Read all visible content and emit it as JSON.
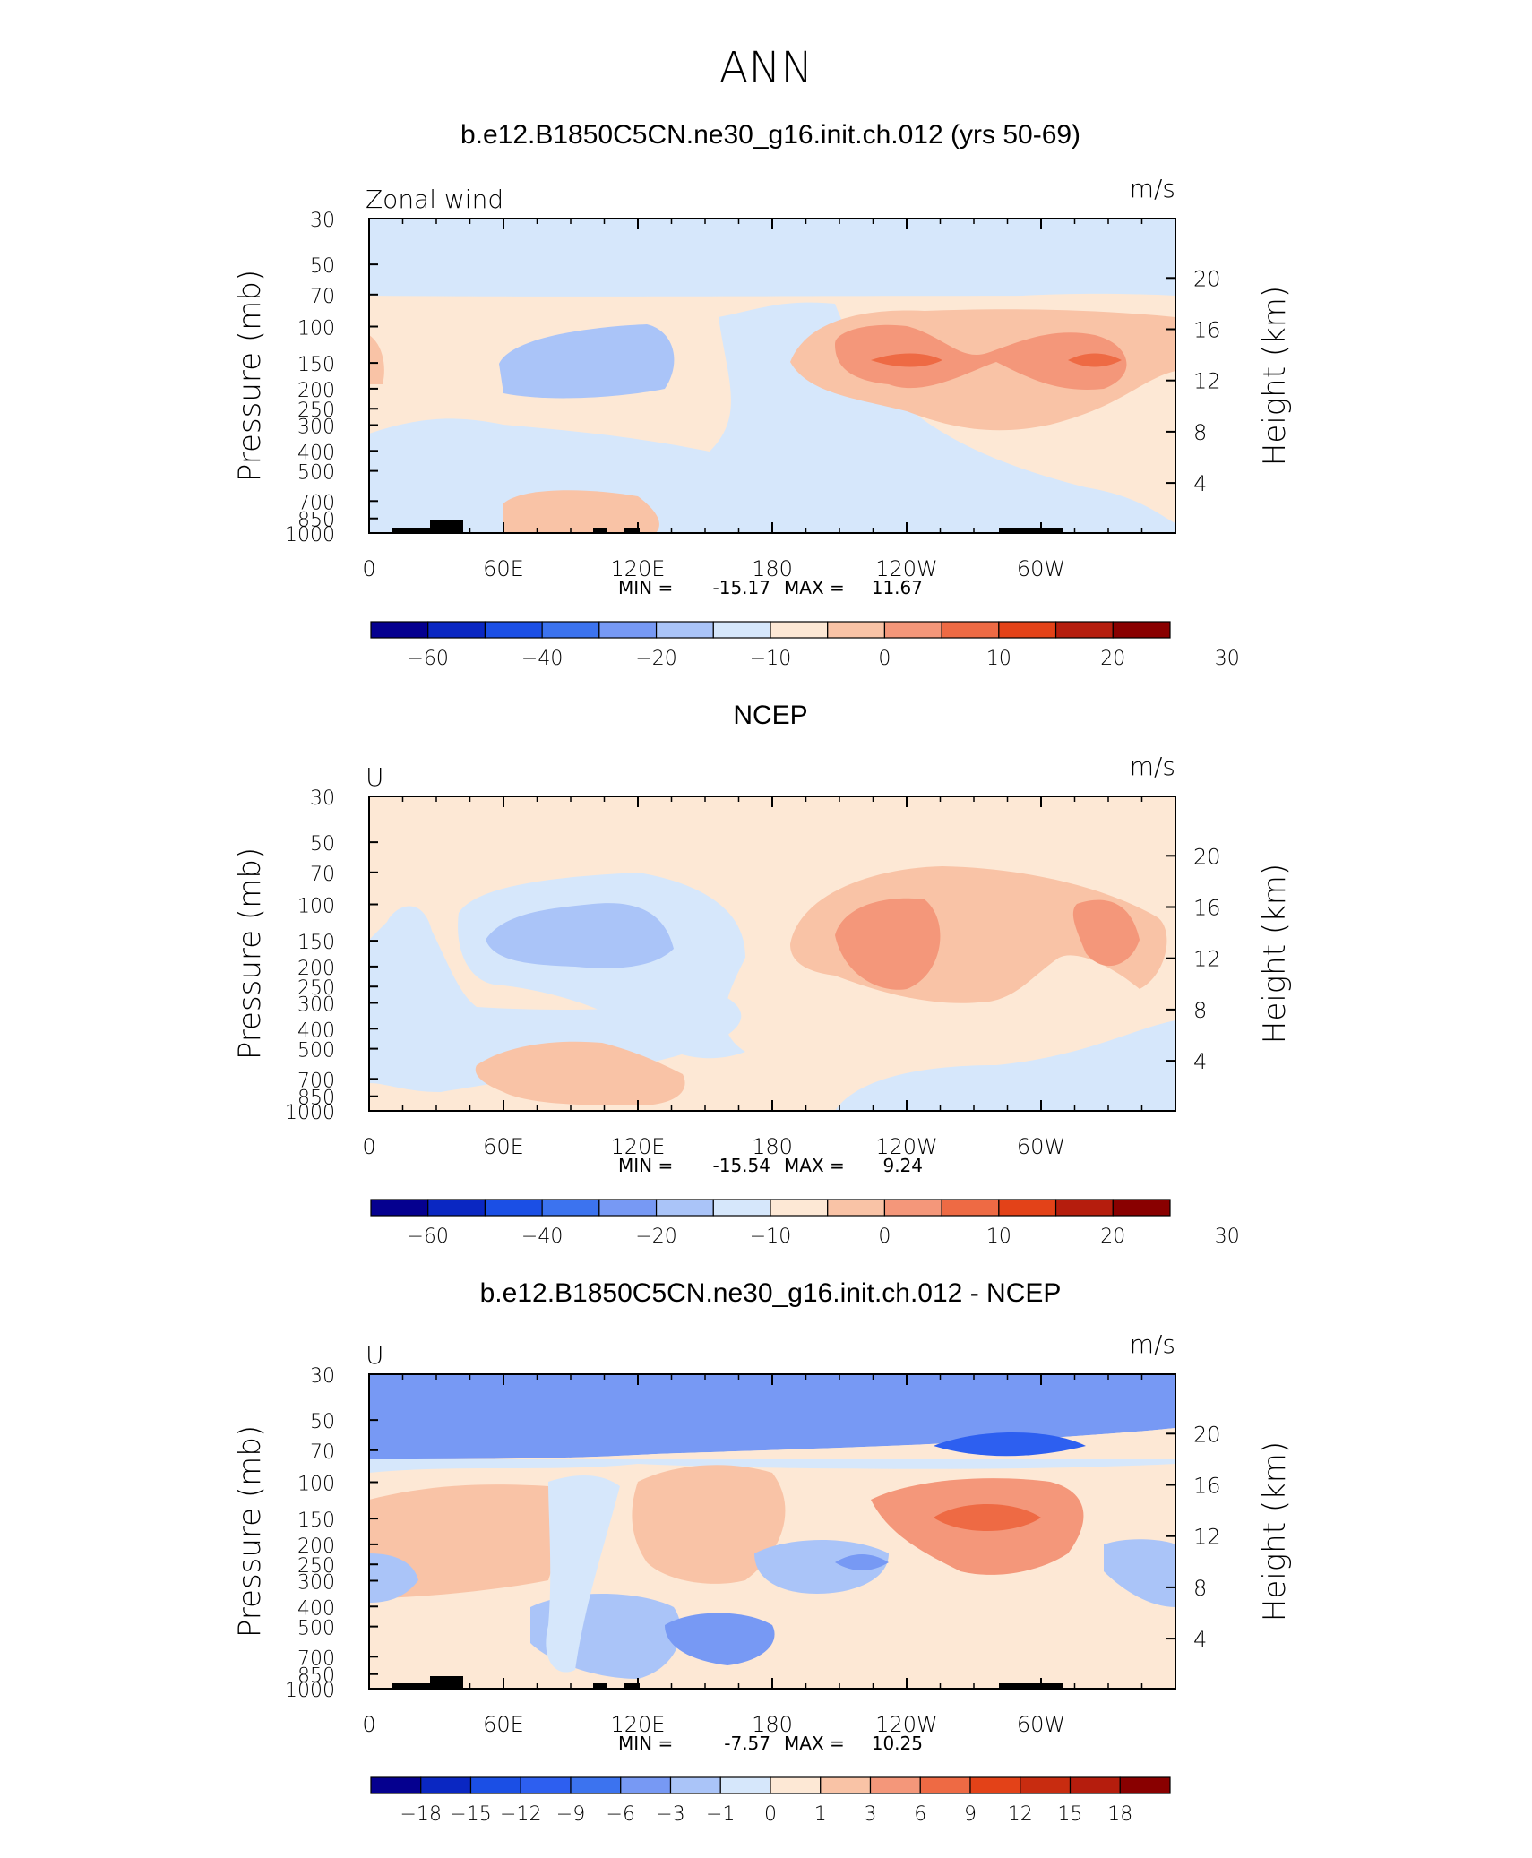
{
  "figure": {
    "title": "ANN"
  },
  "chart_data": [
    {
      "type": "contour",
      "panel_title": "b.e12.B1850C5CN.ne30_g16.init.ch.012 (yrs 50-69)",
      "left_label": "Zonal wind",
      "units": "m/s",
      "ylabel": "Pressure (mb)",
      "ylabel_right": "Height (km)",
      "x_ticks": [
        "0",
        "60E",
        "120E",
        "180",
        "120W",
        "60W"
      ],
      "y_ticks": [
        "30",
        "50",
        "70",
        "100",
        "150",
        "200",
        "250",
        "300",
        "400",
        "500",
        "700",
        "850",
        "1000"
      ],
      "y_ticks_right": [
        "20",
        "16",
        "12",
        "8",
        "4"
      ],
      "stats": {
        "min_label": "MIN =",
        "min": "-15.17",
        "max_label": "MAX =",
        "max": "11.67"
      },
      "colorbar": {
        "levels": [
          "-60",
          "-40",
          "-20",
          "-10",
          "0",
          "10",
          "20",
          "30"
        ],
        "colors": [
          "#05008f",
          "#0a27c2",
          "#1b4fe5",
          "#3c73ef",
          "#7799f4",
          "#aac4f8",
          "#d6e7fb",
          "#fde8d5",
          "#f9c3a6",
          "#f4977a",
          "#ee6a44",
          "#e34218",
          "#b51d0d",
          "#890000"
        ]
      },
      "regions": [
        {
          "label": "easterly 0 to -10 band 30-70 mb",
          "range": "-10 to 0"
        },
        {
          "label": "westerly jets near 150 mb",
          "range": "10 to 20"
        },
        {
          "label": "easterly core 60E-150E near 150 mb",
          "range": "-20 to -10"
        }
      ]
    },
    {
      "type": "contour",
      "panel_title": "NCEP",
      "left_label": "U",
      "units": "m/s",
      "ylabel": "Pressure (mb)",
      "ylabel_right": "Height (km)",
      "x_ticks": [
        "0",
        "60E",
        "120E",
        "180",
        "120W",
        "60W"
      ],
      "y_ticks": [
        "30",
        "50",
        "70",
        "100",
        "150",
        "200",
        "250",
        "300",
        "400",
        "500",
        "700",
        "850",
        "1000"
      ],
      "y_ticks_right": [
        "20",
        "16",
        "12",
        "8",
        "4"
      ],
      "stats": {
        "min_label": "MIN =",
        "min": "-15.54",
        "max_label": "MAX =",
        "max": "9.24"
      },
      "colorbar": {
        "levels": [
          "-60",
          "-40",
          "-20",
          "-10",
          "0",
          "10",
          "20",
          "30"
        ],
        "colors": [
          "#05008f",
          "#0a27c2",
          "#1b4fe5",
          "#3c73ef",
          "#7799f4",
          "#aac4f8",
          "#d6e7fb",
          "#fde8d5",
          "#f9c3a6",
          "#f4977a",
          "#ee6a44",
          "#e34218",
          "#b51d0d",
          "#890000"
        ]
      },
      "regions": [
        {
          "label": "westerly maxima 10-20 m/s near 150 mb",
          "range": "10 to 20"
        },
        {
          "label": "easterly core 60E-150E",
          "range": "-20 to -10"
        }
      ]
    },
    {
      "type": "contour",
      "panel_title": "b.e12.B1850C5CN.ne30_g16.init.ch.012 - NCEP",
      "left_label": "U",
      "units": "m/s",
      "ylabel": "Pressure (mb)",
      "ylabel_right": "Height (km)",
      "x_ticks": [
        "0",
        "60E",
        "120E",
        "180",
        "120W",
        "60W"
      ],
      "y_ticks": [
        "30",
        "50",
        "70",
        "100",
        "150",
        "200",
        "250",
        "300",
        "400",
        "500",
        "700",
        "850",
        "1000"
      ],
      "y_ticks_right": [
        "20",
        "16",
        "12",
        "8",
        "4"
      ],
      "stats": {
        "min_label": "MIN =",
        "min": "-7.57",
        "max_label": "MAX =",
        "max": "10.25"
      },
      "colorbar": {
        "levels": [
          "-18",
          "-15",
          "-12",
          "-9",
          "-6",
          "-3",
          "-1",
          "0",
          "1",
          "3",
          "6",
          "9",
          "12",
          "15",
          "18"
        ],
        "colors": [
          "#05008f",
          "#0a27c2",
          "#1b4fe5",
          "#2d5ff0",
          "#3c73ef",
          "#7799f4",
          "#aac4f8",
          "#d6e7fb",
          "#fde8d5",
          "#f9c3a6",
          "#f4977a",
          "#ee6a44",
          "#e34218",
          "#c82c10",
          "#b51d0d",
          "#890000"
        ]
      },
      "regions": [
        {
          "label": "negative -3 to -6 band 30-70 mb",
          "range": "-6 to -3"
        },
        {
          "label": "positive 6-9 near 150 mb 120W-60W",
          "range": "6 to 9"
        }
      ]
    }
  ]
}
